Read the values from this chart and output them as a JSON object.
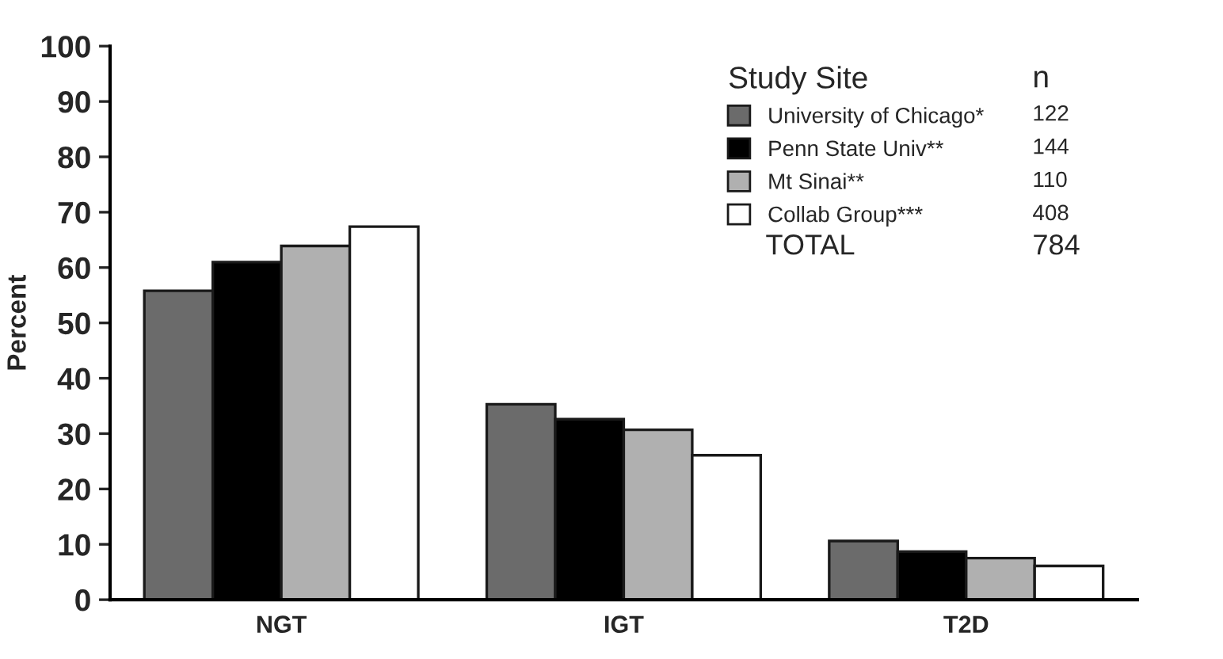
{
  "chart_data": {
    "type": "bar",
    "ylabel": "Percent",
    "categories": [
      "NGT",
      "IGT",
      "T2D"
    ],
    "series": [
      {
        "name": "University of Chicago*",
        "color": "#6b6b6b",
        "values": [
          55.8,
          35.3,
          10.6
        ]
      },
      {
        "name": "Penn State Univ**",
        "color": "#000000",
        "values": [
          61,
          32.6,
          8.7
        ]
      },
      {
        "name": "Mt Sinai**",
        "color": "#b0b0b0",
        "values": [
          63.9,
          30.7,
          7.5
        ]
      },
      {
        "name": "Collab Group***",
        "color": "#ffffff",
        "values": [
          67.4,
          26.1,
          6.1
        ]
      }
    ],
    "legend_title": "Study Site",
    "annotations": [
      "n",
      "122",
      "144",
      "110",
      "408",
      "TOTAL",
      "784"
    ],
    "ylim": [
      0,
      100
    ],
    "yticks": [
      0,
      10,
      20,
      30,
      40,
      50,
      60,
      70,
      80,
      90,
      100
    ],
    "grid": false,
    "legend": "top right"
  }
}
